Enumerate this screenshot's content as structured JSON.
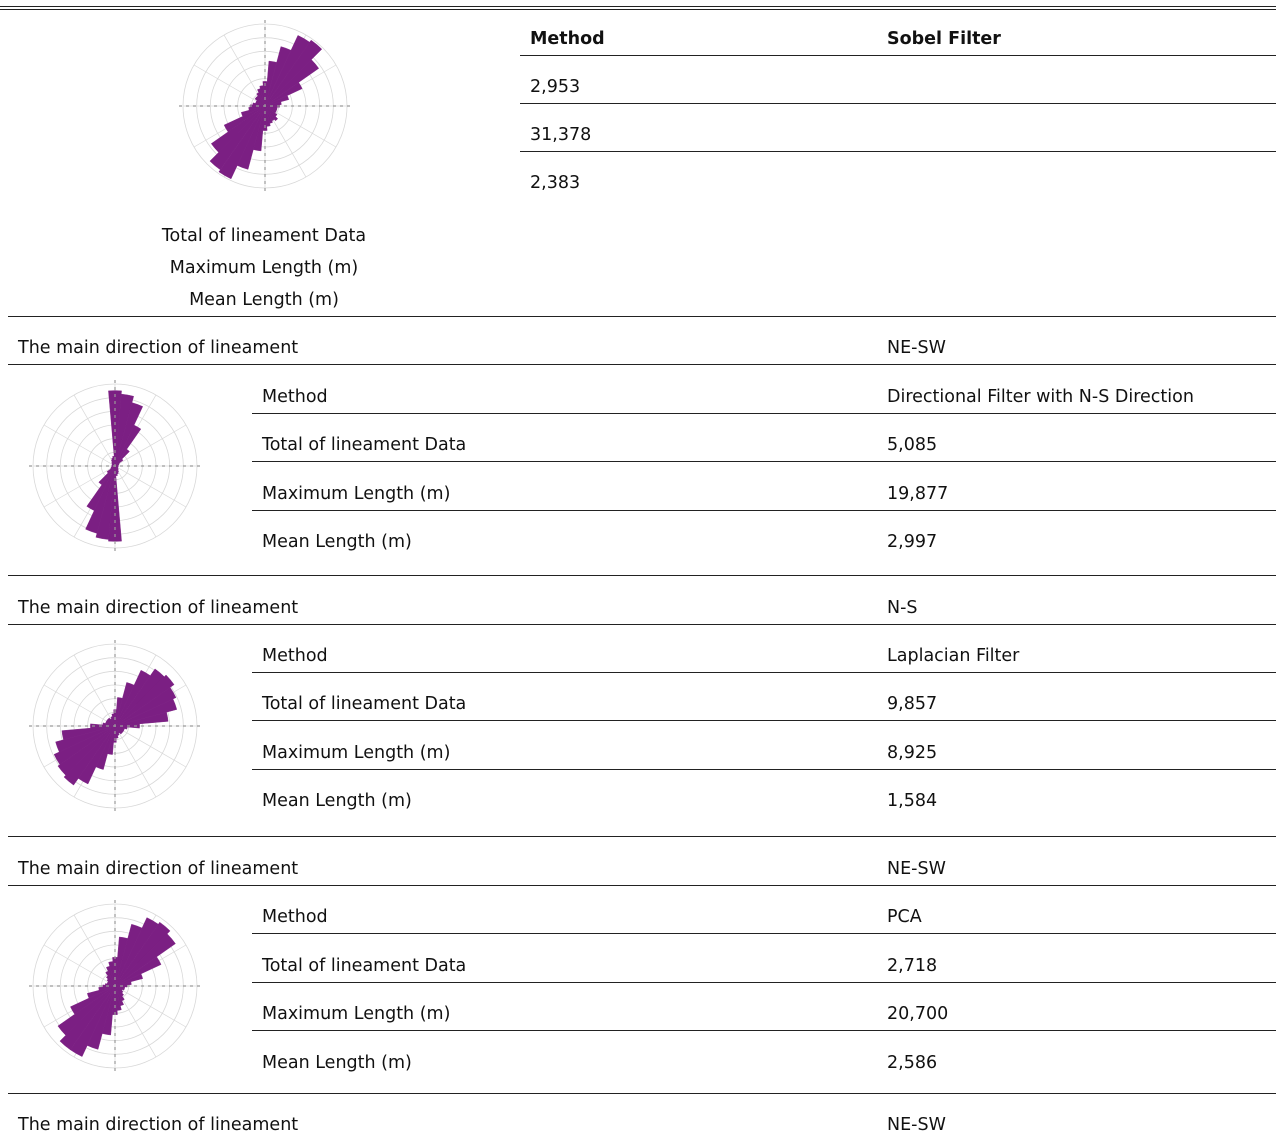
{
  "colors": {
    "rose_fill": "#7b1f83",
    "grid": "#d8d8d8",
    "axis": "#9a9a9a"
  },
  "sections": [
    {
      "rows": [
        {
          "label": "Method",
          "value": "Sobel Filter"
        },
        {
          "label": "Total of lineament Data",
          "value": "2,953"
        },
        {
          "label": "Maximum Length (m)",
          "value": "31,378"
        },
        {
          "label": "Mean Length (m)",
          "value": "2,383"
        }
      ],
      "main_direction_label": "The main direction of lineament",
      "main_direction_value": "NE-SW",
      "rose_dominant": "NE-SW"
    },
    {
      "rows": [
        {
          "label": "Method",
          "value": "Directional Filter with N-S Direction"
        },
        {
          "label": "Total of lineament Data",
          "value": "5,085"
        },
        {
          "label": "Maximum Length (m)",
          "value": "19,877"
        },
        {
          "label": "Mean Length (m)",
          "value": "2,997"
        }
      ],
      "main_direction_label": "The main direction of lineament",
      "main_direction_value": "N-S",
      "rose_dominant": "N-S"
    },
    {
      "rows": [
        {
          "label": "Method",
          "value": "Laplacian Filter"
        },
        {
          "label": "Total of lineament Data",
          "value": "9,857"
        },
        {
          "label": "Maximum Length (m)",
          "value": "8,925"
        },
        {
          "label": "Mean Length (m)",
          "value": "1,584"
        }
      ],
      "main_direction_label": "The main direction of lineament",
      "main_direction_value": "NE-SW",
      "rose_dominant": "NE-SW"
    },
    {
      "rows": [
        {
          "label": "Method",
          "value": "PCA"
        },
        {
          "label": "Total of lineament Data",
          "value": "2,718"
        },
        {
          "label": "Maximum Length (m)",
          "value": "20,700"
        },
        {
          "label": "Mean Length (m)",
          "value": "2,586"
        }
      ],
      "main_direction_label": "The main direction of lineament",
      "main_direction_value": "NE-SW",
      "rose_dominant": "NE-SW"
    }
  ],
  "rose_diagrams": [
    {
      "petals_deg": [
        0,
        10,
        20,
        30,
        40,
        50,
        60,
        70,
        80,
        90,
        100,
        110,
        120,
        130,
        140,
        150,
        160,
        170,
        180,
        190,
        200,
        210,
        220,
        230,
        240,
        250,
        260,
        270,
        280,
        290,
        300,
        310,
        320,
        330,
        340,
        350
      ],
      "petals_len": [
        0.3,
        0.55,
        0.75,
        0.95,
        0.98,
        0.8,
        0.5,
        0.3,
        0.2,
        0.18,
        0.15,
        0.15,
        0.15,
        0.18,
        0.22,
        0.2,
        0.22,
        0.25,
        0.3,
        0.55,
        0.8,
        0.98,
        0.95,
        0.8,
        0.55,
        0.3,
        0.2,
        0.18,
        0.15,
        0.12,
        0.12,
        0.15,
        0.15,
        0.18,
        0.22,
        0.25
      ]
    },
    {
      "petals_deg": [
        0,
        10,
        20,
        30,
        40,
        50,
        60,
        70,
        80,
        90,
        100,
        110,
        120,
        130,
        140,
        150,
        160,
        170,
        180,
        190,
        200,
        210,
        220,
        230,
        240,
        250,
        260,
        270,
        280,
        290,
        300,
        310,
        320,
        330,
        340,
        350
      ],
      "petals_len": [
        0.92,
        0.88,
        0.8,
        0.55,
        0.25,
        0.12,
        0.06,
        0.05,
        0.04,
        0.04,
        0.04,
        0.04,
        0.04,
        0.05,
        0.06,
        0.08,
        0.1,
        0.12,
        0.92,
        0.9,
        0.85,
        0.6,
        0.28,
        0.12,
        0.06,
        0.05,
        0.04,
        0.04,
        0.04,
        0.04,
        0.04,
        0.05,
        0.06,
        0.08,
        0.1,
        0.12
      ]
    },
    {
      "petals_deg": [
        0,
        10,
        20,
        30,
        40,
        50,
        60,
        70,
        80,
        90,
        100,
        110,
        120,
        130,
        140,
        150,
        160,
        170,
        180,
        190,
        200,
        210,
        220,
        230,
        240,
        250,
        260,
        270,
        280,
        290,
        300,
        310,
        320,
        330,
        340,
        350
      ],
      "petals_len": [
        0.2,
        0.35,
        0.55,
        0.75,
        0.85,
        0.88,
        0.82,
        0.78,
        0.65,
        0.3,
        0.15,
        0.12,
        0.12,
        0.12,
        0.12,
        0.1,
        0.12,
        0.15,
        0.2,
        0.35,
        0.55,
        0.78,
        0.88,
        0.85,
        0.82,
        0.75,
        0.65,
        0.3,
        0.15,
        0.12,
        0.12,
        0.12,
        0.12,
        0.1,
        0.12,
        0.15
      ]
    },
    {
      "petals_deg": [
        0,
        10,
        20,
        30,
        40,
        50,
        60,
        70,
        80,
        90,
        100,
        110,
        120,
        130,
        140,
        150,
        160,
        170,
        180,
        190,
        200,
        210,
        220,
        230,
        240,
        250,
        260,
        270,
        280,
        290,
        300,
        310,
        320,
        330,
        340,
        350
      ],
      "petals_len": [
        0.35,
        0.6,
        0.78,
        0.92,
        0.95,
        0.9,
        0.62,
        0.35,
        0.2,
        0.15,
        0.12,
        0.12,
        0.1,
        0.12,
        0.15,
        0.2,
        0.25,
        0.3,
        0.35,
        0.6,
        0.8,
        0.95,
        0.95,
        0.85,
        0.6,
        0.35,
        0.2,
        0.15,
        0.12,
        0.1,
        0.1,
        0.12,
        0.15,
        0.2,
        0.25,
        0.3
      ]
    }
  ]
}
